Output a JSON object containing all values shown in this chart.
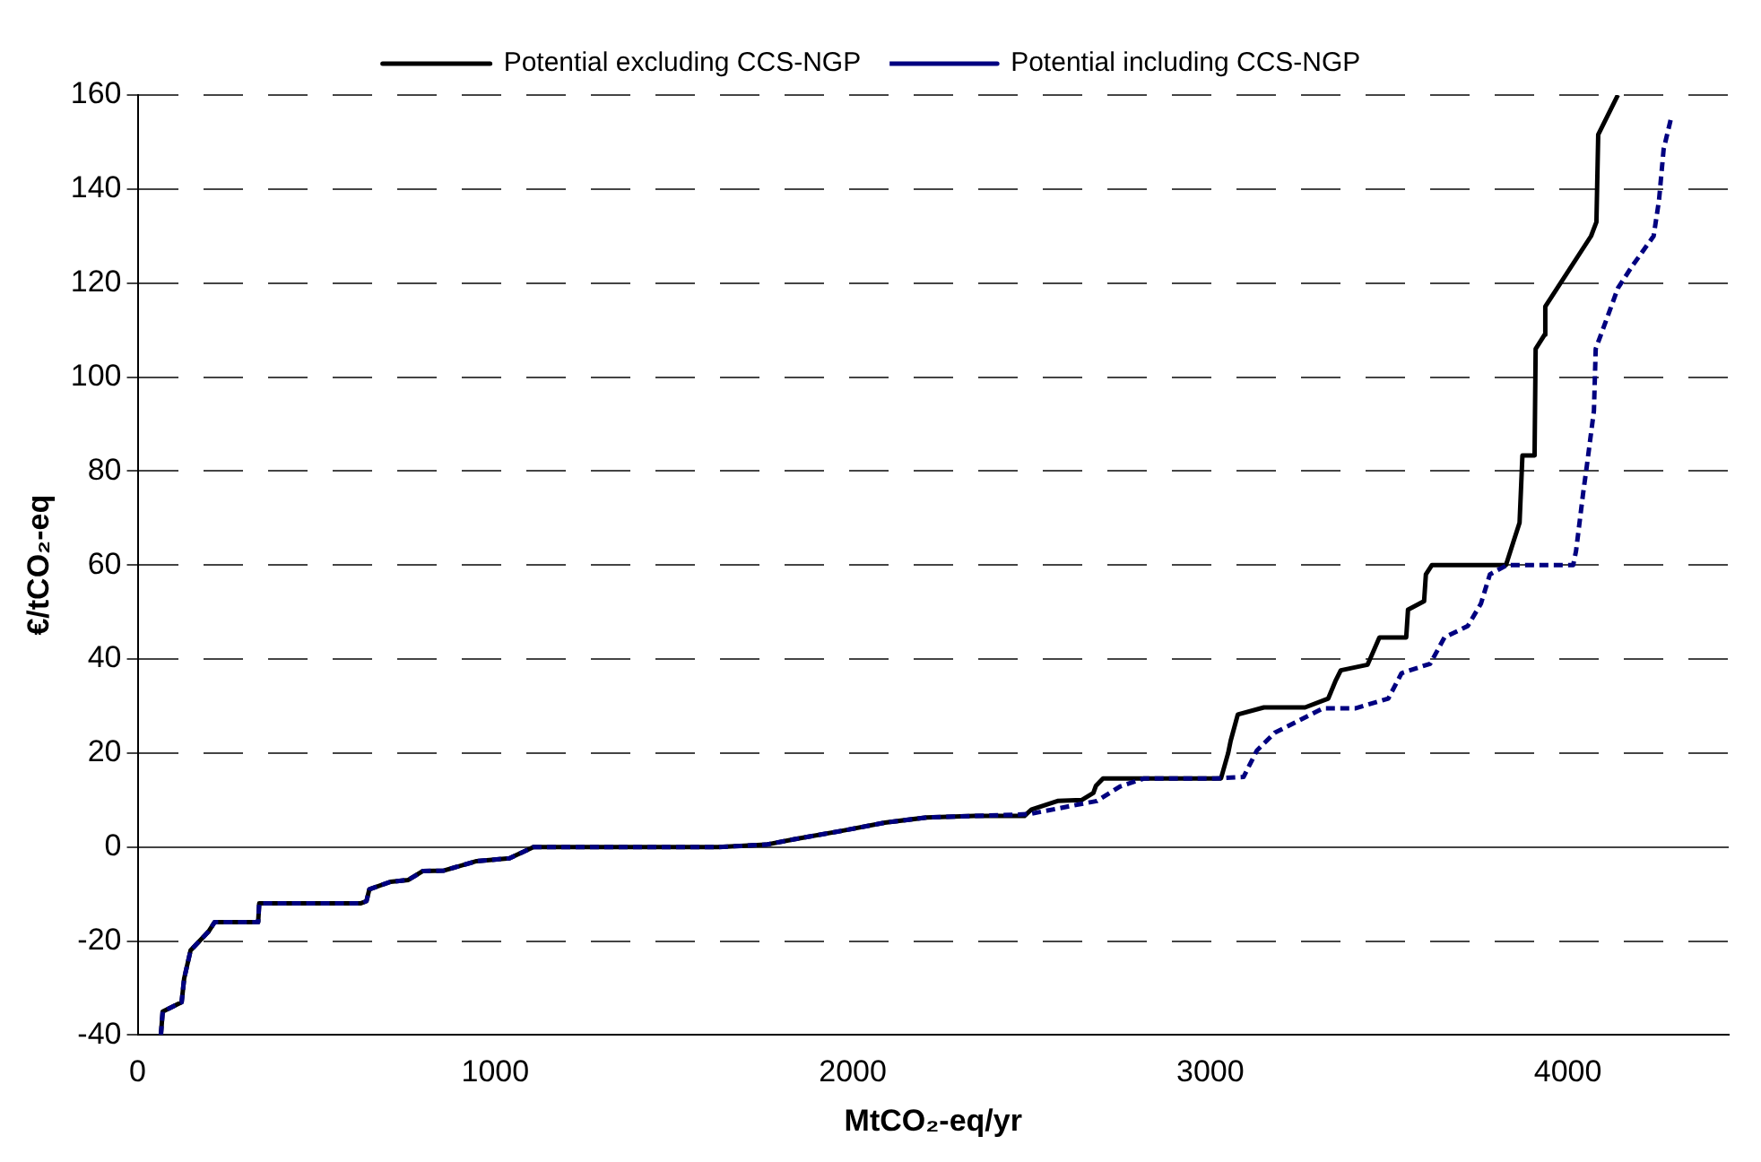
{
  "chart_data": {
    "type": "line",
    "xlabel": "MtCO₂-eq/yr",
    "ylabel": "€/tCO₂-eq",
    "xlim": [
      0,
      4450
    ],
    "ylim": [
      -40,
      160
    ],
    "xticks": [
      0,
      1000,
      2000,
      3000,
      4000
    ],
    "yticks": [
      -40,
      -20,
      0,
      20,
      40,
      60,
      80,
      100,
      120,
      140,
      160
    ],
    "grid": "y",
    "legend": "top",
    "marker": "none",
    "series": [
      {
        "name": "Potential excluding CCS-NGP",
        "color": "#000000",
        "line_style": "solid",
        "x": [
          65,
          70,
          123,
          130,
          148,
          173,
          198,
          215,
          337,
          340,
          623,
          640,
          648,
          707,
          757,
          798,
          857,
          948,
          1040,
          1107,
          1623,
          1757,
          1840,
          1973,
          2090,
          2207,
          2340,
          2480,
          2500,
          2573,
          2640,
          2673,
          2680,
          2700,
          3030,
          3050,
          3057,
          3077,
          3150,
          3265,
          3330,
          3350,
          3365,
          3440,
          3473,
          3548,
          3553,
          3598,
          3603,
          3620,
          3827,
          3848,
          3865,
          3873,
          3907,
          3910,
          3935,
          3937,
          4065,
          4080,
          4085,
          4140
        ],
        "values": [
          -40,
          -35,
          -33,
          -28,
          -22,
          -20,
          -18,
          -16,
          -16,
          -12,
          -12,
          -11.5,
          -9,
          -7.4,
          -7,
          -5.1,
          -5,
          -3,
          -2.4,
          0,
          0,
          0.5,
          1.7,
          3.5,
          5.2,
          6.3,
          6.6,
          6.6,
          8,
          9.8,
          10,
          11.5,
          13,
          14.6,
          14.6,
          20,
          22.6,
          28.2,
          29.7,
          29.7,
          31.6,
          35.3,
          37.6,
          38.8,
          44.6,
          44.6,
          50.5,
          52.3,
          58,
          60,
          60,
          65,
          69,
          83.3,
          83.3,
          106,
          109,
          115,
          130,
          133,
          151.6,
          160
        ]
      },
      {
        "name": "Potential including CCS-NGP",
        "color": "#000080",
        "line_style": "dashed",
        "x": [
          65,
          70,
          123,
          130,
          148,
          173,
          198,
          215,
          337,
          340,
          623,
          640,
          648,
          707,
          757,
          798,
          857,
          948,
          1040,
          1107,
          1623,
          1757,
          1840,
          1973,
          2090,
          2207,
          2340,
          2493,
          2607,
          2683,
          2748,
          2815,
          3015,
          3093,
          3130,
          3180,
          3240,
          3315,
          3405,
          3498,
          3535,
          3615,
          3655,
          3720,
          3757,
          3782,
          3830,
          4015,
          4023,
          4043,
          4053,
          4073,
          4078,
          4107,
          4140,
          4180,
          4240,
          4255,
          4268,
          4290
        ],
        "values": [
          -40,
          -35,
          -33,
          -28,
          -22,
          -20,
          -18,
          -16,
          -16,
          -12,
          -12,
          -11.5,
          -9,
          -7.4,
          -7,
          -5.1,
          -5,
          -3,
          -2.4,
          0,
          0,
          0.5,
          1.7,
          3.5,
          5.2,
          6.3,
          6.6,
          7,
          8.7,
          9.8,
          12.9,
          14.6,
          14.6,
          14.9,
          20.5,
          24.3,
          26.6,
          29.5,
          29.5,
          31.6,
          37,
          39,
          44.6,
          47,
          51.8,
          58,
          60,
          60,
          63,
          75.4,
          81,
          92.8,
          106,
          112,
          118.9,
          123.6,
          130,
          137.6,
          148.5,
          155.5
        ]
      }
    ]
  }
}
